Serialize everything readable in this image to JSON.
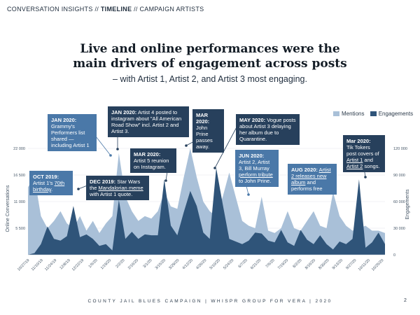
{
  "breadcrumb": {
    "part1": "CONVERSATION INSIGHTS // ",
    "part2": "TIMELINE",
    "part3": " // CAMPAIGN ARTISTS"
  },
  "title_line1": "Live and online performances were the",
  "title_line2": "main drivers of engagement across posts",
  "subtitle": "– with Artist 1, Artist 2, and Artist 3 most engaging.",
  "legend": {
    "mentions": "Mentions",
    "engagements": "Engagements"
  },
  "colors": {
    "mentions": "#a9c0d8",
    "engagements": "#2f5479",
    "box_dark": "#27405c",
    "box_mid": "#4a78a8"
  },
  "footer": "COUNTY JAIL BLUES CAMPAIGN  |  WHISPR GROUP FOR VERA  |  2020",
  "page_number": "2",
  "annotations": [
    {
      "date": "OCT 2019:",
      "text": " Artist 1's ",
      "link": "70th birthday",
      "tail": "."
    },
    {
      "date": "JAN 2020:",
      "text": "Grammy's Performers list shared — including Artist 1"
    },
    {
      "date": "DEC 2019:",
      "text": " Star Wars the ",
      "link": "Mandalorian meme",
      "tail": " with Artist 1 quote."
    },
    {
      "date": "JAN 2020:",
      "text": " Artist 4 posted to instagram about \"All American Road Show\" incl. Artist 2 and Artist 3."
    },
    {
      "date": "MAR 2020:",
      "text": "Artist 5 reunion on Instagram."
    },
    {
      "date": "MAR 2020:",
      "text": "John Prine passes away."
    },
    {
      "date": "MAY 2020:",
      "text": " Vogue posts about Artist 3 delaying her album due to Quarantine."
    },
    {
      "date": "JUN 2020:",
      "text": "Artist 2, Artist 3, Bill Murray ",
      "link": "perform tribute",
      "tail": " to John Prine."
    },
    {
      "date": "AUG 2020:",
      "text": " ",
      "link": "Artist 2 releases new album",
      "tail": " and performs free"
    },
    {
      "date": "Mar 2020:",
      "text": "Tik Tokers post covers of ",
      "link": "Artist 1",
      "mid": " and ",
      "link2": "Artist 2",
      "tail": " songs."
    }
  ],
  "chart_data": {
    "type": "area",
    "ylabel": "Online Conversations",
    "y2label": "Engagements",
    "ylim": [
      0,
      22000
    ],
    "y2lim": [
      0,
      120000
    ],
    "y_ticks": [
      0,
      5500,
      11000,
      16500,
      22000
    ],
    "y_tick_labels": [
      "",
      "5 500",
      "11 000",
      "16 500",
      "22 000"
    ],
    "y2_ticks": [
      0,
      30000,
      60000,
      90000,
      120000
    ],
    "y2_tick_labels": [
      "0",
      "30 000",
      "60 000",
      "90 000",
      "120 000"
    ],
    "x_tick_labels": [
      "10/27/19",
      "11/10/19",
      "11/24/19",
      "12/8/19",
      "12/22/19",
      "1/5/20",
      "1/19/20",
      "2/2/20",
      "2/16/20",
      "3/1/20",
      "3/15/20",
      "3/29/20",
      "4/12/20",
      "4/26/20",
      "5/10/20",
      "5/24/20",
      "6/7/20",
      "6/21/20",
      "7/5/20",
      "7/19/20",
      "8/2/20",
      "8/16/20",
      "8/30/20",
      "9/13/20",
      "9/27/20",
      "10/11/20",
      "10/25/20"
    ],
    "series": [
      {
        "name": "Mentions",
        "axis": "left",
        "values": [
          14000,
          16000,
          8000,
          5500,
          7000,
          9000,
          6500,
          5500,
          8000,
          5000,
          7000,
          4500,
          6500,
          8000,
          21000,
          12000,
          9000,
          7000,
          8000,
          7500,
          9000,
          13000,
          10000,
          9500,
          16000,
          22000,
          16000,
          11000,
          9000,
          8000,
          12000,
          17000,
          12000,
          7000,
          6000,
          5500,
          12000,
          5000,
          4500,
          5500,
          9000,
          5500,
          5000,
          7000,
          9000,
          6000,
          5500,
          13000,
          8000,
          6000,
          5000,
          5500,
          6000,
          5000,
          5000,
          4500
        ]
      },
      {
        "name": "Engagements",
        "axis": "right",
        "values": [
          0,
          2000,
          12000,
          32000,
          18000,
          16000,
          21000,
          55000,
          20000,
          23000,
          18000,
          10000,
          12000,
          5000,
          62000,
          18000,
          26000,
          18000,
          23000,
          22000,
          22000,
          85000,
          33000,
          22000,
          48000,
          72000,
          55000,
          25000,
          18000,
          98000,
          57000,
          18000,
          15000,
          12000,
          16000,
          25000,
          24000,
          16000,
          14000,
          28000,
          14000,
          10000,
          28000,
          17000,
          12000,
          22000,
          12000,
          6000,
          15000,
          12000,
          18000,
          85000,
          8000,
          14000,
          25000,
          12000
        ]
      }
    ]
  }
}
